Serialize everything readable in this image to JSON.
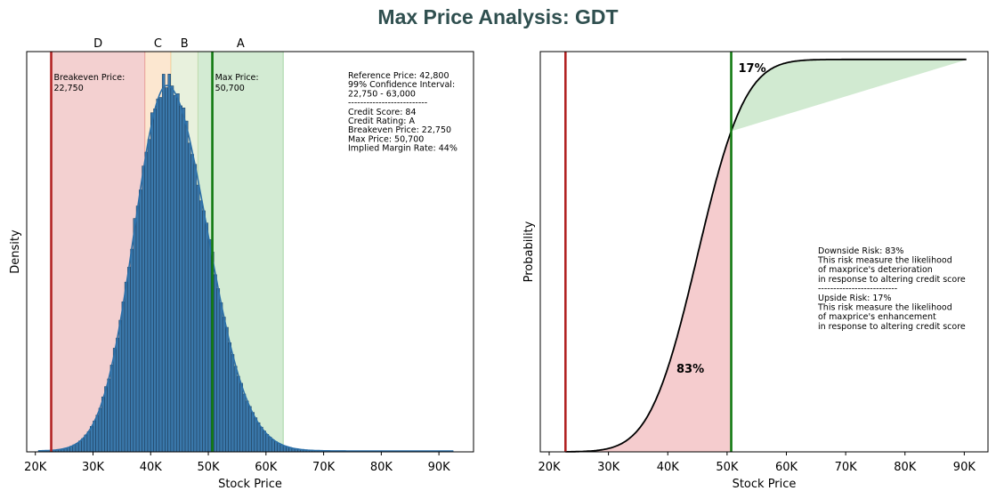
{
  "title": "Max Price Analysis: GDT",
  "colors": {
    "title": "#2f4f4f",
    "hist_fill": "#3a78ab",
    "kde_line": "#2b6fa8",
    "zone_D": "#d04b4b",
    "zone_C": "#f5a34a",
    "zone_B": "#a6c77a",
    "zone_A": "#56b256",
    "breakeven_line": "#b22222",
    "maxprice_line": "#127a12",
    "cdf_line": "#000000",
    "downside_fill": "#f4c6c9",
    "upside_fill": "#cce8cc",
    "downside_text": "#d32a2a",
    "upside_text": "#1a8c1a"
  },
  "chart_data": [
    {
      "type": "histogram",
      "xlabel": "Stock Price",
      "ylabel": "Density",
      "xlim": [
        18500,
        96000
      ],
      "x_ticks": [
        20000,
        30000,
        40000,
        50000,
        60000,
        70000,
        80000,
        90000
      ],
      "x_tick_labels": [
        "20K",
        "30K",
        "40K",
        "50K",
        "60K",
        "70K",
        "80K",
        "90K"
      ],
      "distribution": {
        "mode": 42800,
        "sigma_left": 5600,
        "sigma_right": 7000,
        "min": 20500,
        "max": 92500,
        "bin_width": 500
      },
      "zones": [
        {
          "label": "D",
          "from": 22750,
          "to": 39000
        },
        {
          "label": "C",
          "from": 39000,
          "to": 43500
        },
        {
          "label": "B",
          "from": 43500,
          "to": 48200
        },
        {
          "label": "A",
          "from": 48200,
          "to": 63000
        }
      ],
      "vlines": [
        {
          "x": 22750,
          "label": "Breakeven Price:",
          "value": "22,750"
        },
        {
          "x": 50700,
          "label": "Max Price:",
          "value": "50,700"
        }
      ],
      "info_lines": [
        "Reference Price: 42,800",
        "99% Confidence Interval:",
        "22,750 - 63,000",
        "--------------------------",
        "Credit Score: 84",
        "Credit Rating: A",
        "Breakeven Price: 22,750",
        "Max Price: 50,700",
        "Implied Margin Rate: 44%"
      ]
    },
    {
      "type": "line",
      "xlabel": "Stock Price",
      "ylabel": "Probability",
      "xlim": [
        18500,
        94000
      ],
      "x_ticks": [
        20000,
        30000,
        40000,
        50000,
        60000,
        70000,
        80000,
        90000
      ],
      "x_tick_labels": [
        "20K",
        "30K",
        "40K",
        "50K",
        "60K",
        "70K",
        "80K",
        "90K"
      ],
      "ylim": [
        0,
        1.02
      ],
      "cdf_x_range": [
        22750,
        90500
      ],
      "breakeven": 22750,
      "max_price": 50700,
      "downside_label": "83%",
      "upside_label": "17%",
      "info_lines": [
        "Downside Risk: 83%",
        "This risk measure the likelihood",
        "of maxprice's deterioration",
        "in response to altering credit score",
        "--------------------------",
        "Upside Risk: 17%",
        "This risk measure the likelihood",
        "of maxprice's enhancement",
        "in response to altering credit score"
      ]
    }
  ]
}
